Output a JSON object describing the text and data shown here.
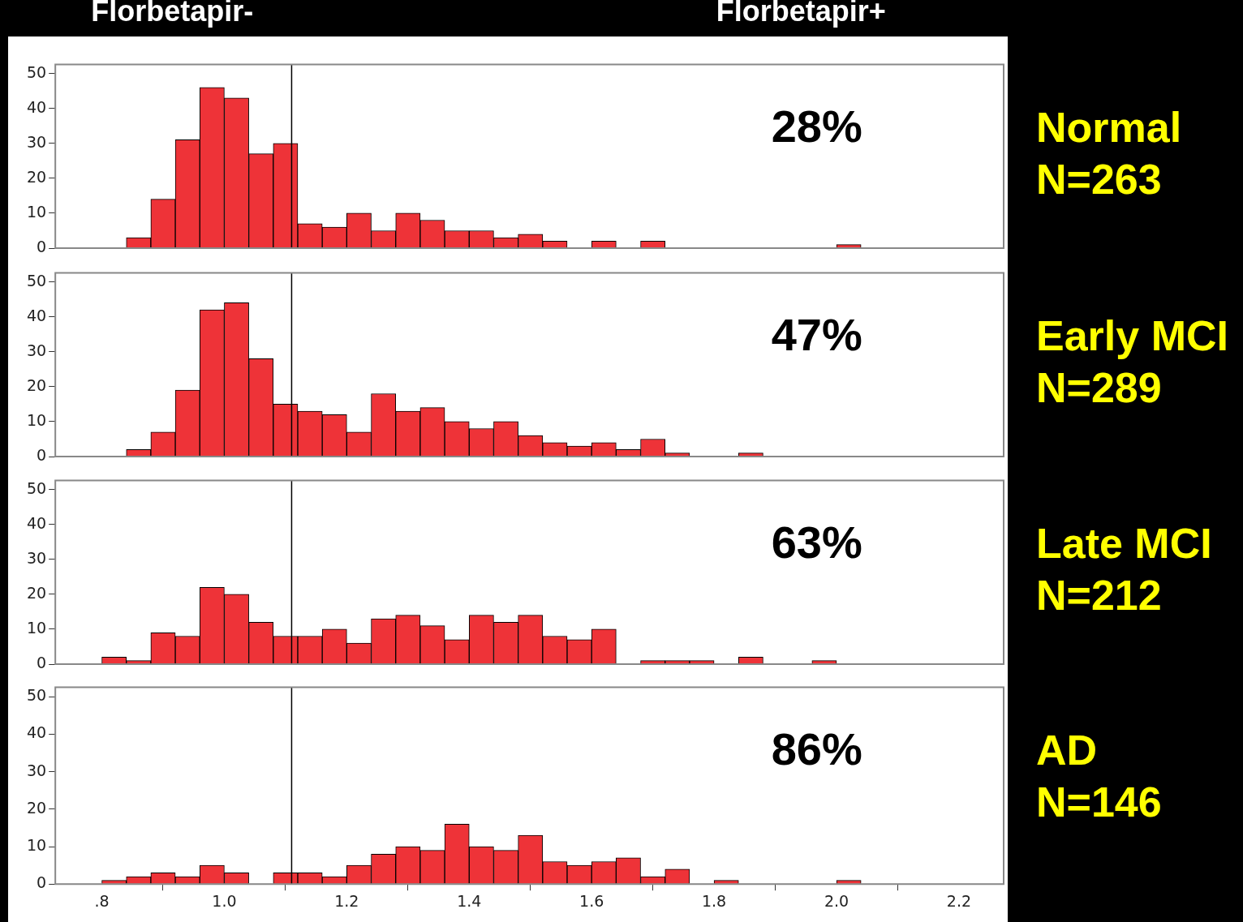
{
  "chart_data": [
    {
      "type": "histogram",
      "bins": [
        0.8,
        0.84,
        0.88,
        0.92,
        0.96,
        1.0,
        1.04,
        1.08,
        1.12,
        1.16,
        1.2,
        1.24,
        1.28,
        1.32,
        1.36,
        1.4,
        1.44,
        1.48,
        1.52,
        1.56,
        1.6,
        1.64,
        1.68,
        1.72,
        1.76,
        1.8,
        1.84,
        1.88,
        1.92,
        1.96,
        2.0,
        2.04
      ],
      "values": [
        0,
        3,
        14,
        31,
        46,
        43,
        27,
        30,
        7,
        6,
        10,
        5,
        10,
        8,
        5,
        5,
        3,
        4,
        2,
        0,
        2,
        0,
        2,
        0,
        0,
        0,
        0,
        0,
        0,
        0,
        1
      ],
      "color": "#ee3338",
      "xlim": [
        0.724,
        2.273
      ],
      "ylim": [
        0,
        52.6
      ],
      "yticks": [
        0,
        10,
        20,
        30,
        40,
        50
      ],
      "grid": false,
      "legend": false,
      "tick_labels": "y",
      "ref_lines": [
        {
          "axis": "x",
          "value": 1.11,
          "color": "#000000"
        }
      ],
      "annotations": [
        "28%",
        "Normal",
        "N=263",
        "Florbetapir-",
        "Florbetapir+"
      ]
    },
    {
      "type": "histogram",
      "bins": [
        0.8,
        0.84,
        0.88,
        0.92,
        0.96,
        1.0,
        1.04,
        1.08,
        1.12,
        1.16,
        1.2,
        1.24,
        1.28,
        1.32,
        1.36,
        1.4,
        1.44,
        1.48,
        1.52,
        1.56,
        1.6,
        1.64,
        1.68,
        1.72,
        1.76,
        1.8,
        1.84,
        1.88,
        1.92,
        1.96,
        2.0,
        2.04
      ],
      "values": [
        0,
        2,
        7,
        19,
        42,
        44,
        28,
        15,
        13,
        12,
        7,
        18,
        13,
        14,
        10,
        8,
        10,
        6,
        4,
        3,
        4,
        2,
        5,
        1,
        0,
        0,
        1,
        0,
        0,
        0,
        0
      ],
      "color": "#ee3338",
      "xlim": [
        0.724,
        2.273
      ],
      "ylim": [
        0,
        52.6
      ],
      "yticks": [
        0,
        10,
        20,
        30,
        40,
        50
      ],
      "grid": false,
      "legend": false,
      "tick_labels": "y",
      "ref_lines": [
        {
          "axis": "x",
          "value": 1.11,
          "color": "#000000"
        }
      ],
      "annotations": [
        "47%",
        "Early MCI",
        "N=289"
      ]
    },
    {
      "type": "histogram",
      "bins": [
        0.8,
        0.84,
        0.88,
        0.92,
        0.96,
        1.0,
        1.04,
        1.08,
        1.12,
        1.16,
        1.2,
        1.24,
        1.28,
        1.32,
        1.36,
        1.4,
        1.44,
        1.48,
        1.52,
        1.56,
        1.6,
        1.64,
        1.68,
        1.72,
        1.76,
        1.8,
        1.84,
        1.88,
        1.92,
        1.96,
        2.0,
        2.04
      ],
      "values": [
        2,
        1,
        9,
        8,
        22,
        20,
        12,
        8,
        8,
        10,
        6,
        13,
        14,
        11,
        7,
        14,
        12,
        14,
        8,
        7,
        10,
        0,
        1,
        1,
        1,
        0,
        2,
        0,
        0,
        1,
        0
      ],
      "color": "#ee3338",
      "xlim": [
        0.724,
        2.273
      ],
      "ylim": [
        0,
        52.6
      ],
      "yticks": [
        0,
        10,
        20,
        30,
        40,
        50
      ],
      "grid": false,
      "legend": false,
      "tick_labels": "y",
      "ref_lines": [
        {
          "axis": "x",
          "value": 1.11,
          "color": "#000000"
        }
      ],
      "annotations": [
        "63%",
        "Late MCI",
        "N=212"
      ]
    },
    {
      "type": "histogram",
      "bins": [
        0.8,
        0.84,
        0.88,
        0.92,
        0.96,
        1.0,
        1.04,
        1.08,
        1.12,
        1.16,
        1.2,
        1.24,
        1.28,
        1.32,
        1.36,
        1.4,
        1.44,
        1.48,
        1.52,
        1.56,
        1.6,
        1.64,
        1.68,
        1.72,
        1.76,
        1.8,
        1.84,
        1.88,
        1.92,
        1.96,
        2.0,
        2.04
      ],
      "values": [
        1,
        2,
        3,
        2,
        5,
        3,
        0,
        3,
        3,
        2,
        5,
        8,
        10,
        9,
        16,
        10,
        9,
        13,
        6,
        5,
        6,
        7,
        2,
        4,
        0,
        1,
        0,
        0,
        0,
        0,
        1
      ],
      "color": "#ee3338",
      "xlim": [
        0.724,
        2.273
      ],
      "xticks": [
        {
          "value": 0.8,
          "label": ".8"
        },
        {
          "value": 1.0,
          "label": "1.0"
        },
        {
          "value": 1.2,
          "label": "1.2"
        },
        {
          "value": 1.4,
          "label": "1.4"
        },
        {
          "value": 1.6,
          "label": "1.6"
        },
        {
          "value": 1.8,
          "label": "1.8"
        },
        {
          "value": 2.0,
          "label": "2.0"
        },
        {
          "value": 2.2,
          "label": "2.2"
        }
      ],
      "ylim": [
        0,
        52.6
      ],
      "yticks": [
        0,
        10,
        20,
        30,
        40,
        50
      ],
      "grid": false,
      "legend": false,
      "ref_lines": [
        {
          "axis": "x",
          "value": 1.11,
          "color": "#000000"
        }
      ],
      "annotations": [
        "86%",
        "AD",
        "N=146"
      ]
    }
  ]
}
